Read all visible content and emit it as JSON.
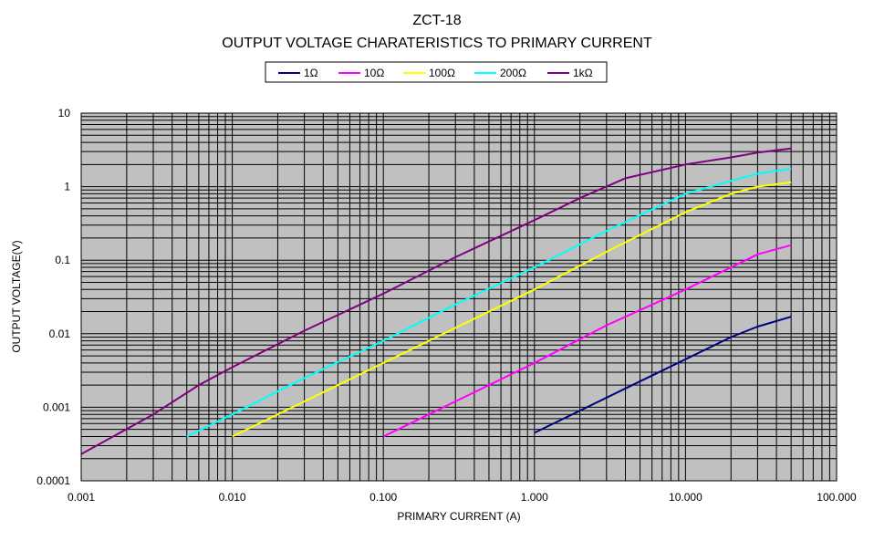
{
  "chart_data": {
    "type": "line",
    "title": "ZCT-18",
    "subtitle": "OUTPUT VOLTAGE CHARATERISTICS TO PRIMARY CURRENT",
    "xlabel": "PRIMARY CURRENT (A)",
    "ylabel": "OUTPUT VOLTAGE(V)",
    "x_scale": "log",
    "y_scale": "log",
    "xlim": [
      0.001,
      100
    ],
    "ylim": [
      0.0001,
      10
    ],
    "x_ticks": [
      "0.001",
      "0.010",
      "0.100",
      "1.000",
      "10.000",
      "100.000"
    ],
    "y_ticks": [
      "10",
      "1",
      "0.1",
      "0.01",
      "0.001",
      "0.0001"
    ],
    "grid": true,
    "legend_position": "top-center",
    "background_color": "#c0c0c0",
    "series": [
      {
        "name": "1Ω",
        "color": "#000080",
        "points": [
          [
            1.0,
            0.00045
          ],
          [
            2,
            0.0009
          ],
          [
            4,
            0.0018
          ],
          [
            10,
            0.0045
          ],
          [
            20,
            0.009
          ],
          [
            30,
            0.0125
          ],
          [
            50,
            0.017
          ]
        ]
      },
      {
        "name": "10Ω",
        "color": "#ff00ff",
        "points": [
          [
            0.1,
            0.0004
          ],
          [
            0.3,
            0.0012
          ],
          [
            1,
            0.004
          ],
          [
            3,
            0.013
          ],
          [
            10,
            0.04
          ],
          [
            20,
            0.08
          ],
          [
            30,
            0.12
          ],
          [
            50,
            0.16
          ]
        ]
      },
      {
        "name": "100Ω",
        "color": "#ffff00",
        "points": [
          [
            0.01,
            0.0004
          ],
          [
            0.03,
            0.0012
          ],
          [
            0.1,
            0.004
          ],
          [
            0.3,
            0.012
          ],
          [
            1,
            0.04
          ],
          [
            3,
            0.13
          ],
          [
            10,
            0.45
          ],
          [
            20,
            0.8
          ],
          [
            30,
            1.0
          ],
          [
            50,
            1.15
          ]
        ]
      },
      {
        "name": "200Ω",
        "color": "#00ffff",
        "points": [
          [
            0.005,
            0.0004
          ],
          [
            0.01,
            0.0008
          ],
          [
            0.03,
            0.0025
          ],
          [
            0.1,
            0.008
          ],
          [
            0.3,
            0.025
          ],
          [
            1,
            0.08
          ],
          [
            3,
            0.25
          ],
          [
            10,
            0.8
          ],
          [
            20,
            1.2
          ],
          [
            30,
            1.5
          ],
          [
            50,
            1.75
          ]
        ]
      },
      {
        "name": "1kΩ",
        "color": "#800080",
        "points": [
          [
            0.001,
            0.00023
          ],
          [
            0.003,
            0.0008
          ],
          [
            0.006,
            0.002
          ],
          [
            0.01,
            0.0035
          ],
          [
            0.03,
            0.011
          ],
          [
            0.1,
            0.035
          ],
          [
            0.3,
            0.11
          ],
          [
            1,
            0.35
          ],
          [
            2,
            0.7
          ],
          [
            4,
            1.3
          ],
          [
            10,
            2.0
          ],
          [
            20,
            2.5
          ],
          [
            30,
            2.9
          ],
          [
            50,
            3.3
          ]
        ]
      }
    ]
  }
}
